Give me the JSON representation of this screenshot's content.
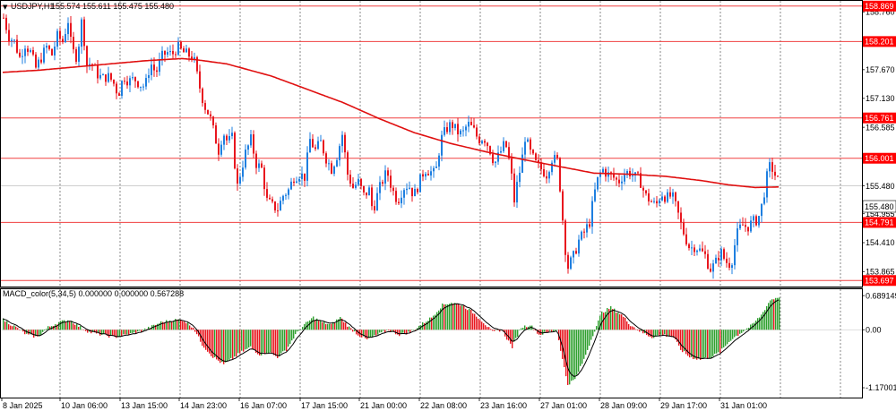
{
  "header": {
    "menu_glyph": "▼",
    "symbol": "USDJPY,H1",
    "ohlc": "155.574 155.611 155.475 155.480"
  },
  "subwindow": {
    "label": "MACD_color(5,34,5) 0.000000 0.000000 0.567288"
  },
  "colors": {
    "bull": "#1e7fe0",
    "bear": "#e8161e",
    "ma": "#e01010",
    "level_line": "#f04040",
    "level_label_bg": "#ff0000",
    "grid": "#555555",
    "macd_pos": "#2ea02e",
    "macd_neg": "#e8161e",
    "signal": "#000000"
  },
  "chart_data": [
    {
      "type": "candlestick",
      "title": "USDJPY,H1",
      "ylim": [
        153.6,
        158.95
      ],
      "y_ticks": [
        "158.760",
        "157.670",
        "157.130",
        "156.585",
        "155.480",
        "154.955",
        "154.410",
        "153.865"
      ],
      "x_labels": [
        "8 Jan 2025",
        "10 Jan 06:00",
        "13 Jan 15:00",
        "14 Jan 23:00",
        "16 Jan 07:00",
        "17 Jan 15:00",
        "21 Jan 00:00",
        "22 Jan 08:00",
        "23 Jan 16:00",
        "27 Jan 01:00",
        "28 Jan 09:00",
        "29 Jan 17:00",
        "31 Jan 01:00"
      ],
      "price_levels": [
        158.869,
        158.201,
        156.761,
        156.001,
        154.791,
        153.697
      ],
      "current_price": 155.48,
      "price_path": [
        [
          0,
          158.65
        ],
        [
          6,
          158.3
        ],
        [
          12,
          158.2
        ],
        [
          18,
          157.9
        ],
        [
          24,
          158.15
        ],
        [
          30,
          158.0
        ],
        [
          36,
          157.7
        ],
        [
          42,
          157.9
        ],
        [
          48,
          158.1
        ],
        [
          54,
          157.95
        ],
        [
          60,
          158.3
        ],
        [
          66,
          158.2
        ],
        [
          72,
          158.6
        ],
        [
          76,
          158.05
        ],
        [
          82,
          157.9
        ],
        [
          88,
          158.7
        ],
        [
          92,
          157.75
        ],
        [
          98,
          157.8
        ],
        [
          104,
          157.6
        ],
        [
          110,
          157.5
        ],
        [
          116,
          157.55
        ],
        [
          122,
          157.45
        ],
        [
          128,
          157.2
        ],
        [
          134,
          157.55
        ],
        [
          140,
          157.45
        ],
        [
          146,
          157.5
        ],
        [
          152,
          157.4
        ],
        [
          158,
          157.35
        ],
        [
          164,
          157.8
        ],
        [
          170,
          157.6
        ],
        [
          176,
          157.9
        ],
        [
          182,
          158.0
        ],
        [
          188,
          157.95
        ],
        [
          194,
          158.1
        ],
        [
          200,
          158.0
        ],
        [
          206,
          157.95
        ],
        [
          212,
          157.9
        ],
        [
          218,
          157.4
        ],
        [
          224,
          157.0
        ],
        [
          230,
          156.8
        ],
        [
          236,
          156.4
        ],
        [
          240,
          156.15
        ],
        [
          245,
          156.5
        ],
        [
          250,
          156.3
        ],
        [
          256,
          156.4
        ],
        [
          260,
          155.4
        ],
        [
          264,
          155.7
        ],
        [
          270,
          156.1
        ],
        [
          276,
          156.35
        ],
        [
          282,
          155.9
        ],
        [
          288,
          155.8
        ],
        [
          294,
          155.2
        ],
        [
          300,
          155.1
        ],
        [
          306,
          155.05
        ],
        [
          312,
          155.3
        ],
        [
          318,
          155.4
        ],
        [
          324,
          155.65
        ],
        [
          330,
          155.7
        ],
        [
          336,
          155.65
        ],
        [
          342,
          156.35
        ],
        [
          348,
          156.15
        ],
        [
          354,
          156.3
        ],
        [
          360,
          156.0
        ],
        [
          366,
          155.8
        ],
        [
          372,
          156.05
        ],
        [
          378,
          156.45
        ],
        [
          384,
          155.7
        ],
        [
          390,
          155.45
        ],
        [
          396,
          155.55
        ],
        [
          402,
          155.3
        ],
        [
          408,
          155.4
        ],
        [
          412,
          155.0
        ],
        [
          416,
          155.25
        ],
        [
          422,
          155.55
        ],
        [
          428,
          155.75
        ],
        [
          434,
          155.4
        ],
        [
          440,
          155.2
        ],
        [
          446,
          155.45
        ],
        [
          452,
          155.5
        ],
        [
          458,
          155.3
        ],
        [
          464,
          155.55
        ],
        [
          470,
          155.8
        ],
        [
          476,
          155.75
        ],
        [
          482,
          155.7
        ],
        [
          488,
          156.35
        ],
        [
          494,
          156.55
        ],
        [
          500,
          156.65
        ],
        [
          506,
          156.5
        ],
        [
          512,
          156.45
        ],
        [
          518,
          156.65
        ],
        [
          524,
          156.55
        ],
        [
          530,
          156.35
        ],
        [
          536,
          156.4
        ],
        [
          542,
          156.2
        ],
        [
          548,
          155.9
        ],
        [
          554,
          156.1
        ],
        [
          560,
          156.3
        ],
        [
          566,
          155.8
        ],
        [
          570,
          155.2
        ],
        [
          574,
          155.6
        ],
        [
          578,
          155.9
        ],
        [
          582,
          156.4
        ],
        [
          588,
          156.1
        ],
        [
          594,
          155.9
        ],
        [
          600,
          155.8
        ],
        [
          606,
          155.7
        ],
        [
          612,
          156.0
        ],
        [
          618,
          155.95
        ],
        [
          622,
          155.3
        ],
        [
          626,
          154.4
        ],
        [
          630,
          153.95
        ],
        [
          636,
          154.15
        ],
        [
          642,
          154.45
        ],
        [
          648,
          154.6
        ],
        [
          654,
          154.8
        ],
        [
          658,
          155.2
        ],
        [
          662,
          155.55
        ],
        [
          668,
          155.8
        ],
        [
          674,
          155.7
        ],
        [
          680,
          155.65
        ],
        [
          686,
          155.55
        ],
        [
          692,
          155.7
        ],
        [
          698,
          155.75
        ],
        [
          704,
          155.65
        ],
        [
          710,
          155.6
        ],
        [
          716,
          155.3
        ],
        [
          722,
          155.2
        ],
        [
          728,
          155.1
        ],
        [
          734,
          155.35
        ],
        [
          740,
          155.25
        ],
        [
          746,
          155.3
        ],
        [
          752,
          155.0
        ],
        [
          756,
          154.75
        ],
        [
          760,
          154.55
        ],
        [
          766,
          154.3
        ],
        [
          772,
          154.35
        ],
        [
          778,
          154.25
        ],
        [
          784,
          154.15
        ],
        [
          788,
          153.9
        ],
        [
          794,
          154.0
        ],
        [
          800,
          154.25
        ],
        [
          806,
          154.05
        ],
        [
          812,
          154.0
        ],
        [
          818,
          154.55
        ],
        [
          824,
          154.75
        ],
        [
          830,
          154.7
        ],
        [
          836,
          154.8
        ],
        [
          842,
          154.85
        ],
        [
          846,
          155.1
        ],
        [
          850,
          155.45
        ],
        [
          854,
          155.85
        ],
        [
          858,
          155.8
        ],
        [
          862,
          155.65
        ],
        [
          866,
          155.5
        ]
      ],
      "moving_average": [
        [
          0,
          157.62
        ],
        [
          40,
          157.66
        ],
        [
          80,
          157.72
        ],
        [
          120,
          157.78
        ],
        [
          160,
          157.84
        ],
        [
          200,
          157.88
        ],
        [
          215,
          157.86
        ],
        [
          250,
          157.78
        ],
        [
          300,
          157.55
        ],
        [
          340,
          157.3
        ],
        [
          380,
          157.05
        ],
        [
          420,
          156.75
        ],
        [
          460,
          156.48
        ],
        [
          500,
          156.28
        ],
        [
          540,
          156.12
        ],
        [
          580,
          155.98
        ],
        [
          620,
          155.85
        ],
        [
          660,
          155.72
        ],
        [
          700,
          155.7
        ],
        [
          740,
          155.66
        ],
        [
          780,
          155.58
        ],
        [
          810,
          155.5
        ],
        [
          840,
          155.45
        ],
        [
          866,
          155.46
        ]
      ]
    },
    {
      "type": "histogram",
      "title": "MACD_color(5,34,5)",
      "ylim": [
        -1.35,
        0.8
      ],
      "y_ticks": [
        "0.689149",
        "0.00",
        "-1.170011"
      ],
      "macd_path": [
        [
          0,
          0.2
        ],
        [
          14,
          0.05
        ],
        [
          26,
          -0.1
        ],
        [
          38,
          -0.15
        ],
        [
          50,
          0.05
        ],
        [
          62,
          0.15
        ],
        [
          74,
          0.2
        ],
        [
          86,
          0.05
        ],
        [
          96,
          -0.05
        ],
        [
          110,
          -0.1
        ],
        [
          124,
          -0.15
        ],
        [
          138,
          -0.1
        ],
        [
          150,
          -0.05
        ],
        [
          164,
          0.05
        ],
        [
          176,
          0.15
        ],
        [
          190,
          0.2
        ],
        [
          200,
          0.2
        ],
        [
          212,
          0.05
        ],
        [
          222,
          -0.3
        ],
        [
          234,
          -0.55
        ],
        [
          246,
          -0.7
        ],
        [
          258,
          -0.55
        ],
        [
          266,
          -0.45
        ],
        [
          276,
          -0.35
        ],
        [
          286,
          -0.5
        ],
        [
          296,
          -0.45
        ],
        [
          306,
          -0.55
        ],
        [
          316,
          -0.4
        ],
        [
          326,
          -0.1
        ],
        [
          336,
          0.1
        ],
        [
          346,
          0.25
        ],
        [
          356,
          0.15
        ],
        [
          366,
          0.1
        ],
        [
          376,
          0.25
        ],
        [
          386,
          0.05
        ],
        [
          396,
          -0.1
        ],
        [
          406,
          -0.2
        ],
        [
          418,
          -0.1
        ],
        [
          430,
          0.0
        ],
        [
          442,
          -0.1
        ],
        [
          454,
          -0.05
        ],
        [
          466,
          0.1
        ],
        [
          478,
          0.25
        ],
        [
          490,
          0.5
        ],
        [
          500,
          0.55
        ],
        [
          512,
          0.5
        ],
        [
          524,
          0.35
        ],
        [
          536,
          0.15
        ],
        [
          546,
          -0.05
        ],
        [
          556,
          0.0
        ],
        [
          568,
          -0.35
        ],
        [
          578,
          0.05
        ],
        [
          588,
          0.1
        ],
        [
          598,
          -0.1
        ],
        [
          608,
          -0.05
        ],
        [
          618,
          0.0
        ],
        [
          624,
          -0.6
        ],
        [
          630,
          -1.1
        ],
        [
          638,
          -1.0
        ],
        [
          648,
          -0.6
        ],
        [
          658,
          -0.1
        ],
        [
          668,
          0.35
        ],
        [
          678,
          0.45
        ],
        [
          690,
          0.3
        ],
        [
          700,
          0.1
        ],
        [
          712,
          -0.05
        ],
        [
          724,
          -0.15
        ],
        [
          736,
          -0.1
        ],
        [
          748,
          -0.15
        ],
        [
          756,
          -0.4
        ],
        [
          766,
          -0.55
        ],
        [
          778,
          -0.6
        ],
        [
          790,
          -0.55
        ],
        [
          800,
          -0.45
        ],
        [
          812,
          -0.2
        ],
        [
          824,
          -0.05
        ],
        [
          836,
          0.1
        ],
        [
          846,
          0.3
        ],
        [
          856,
          0.6
        ],
        [
          866,
          0.67
        ]
      ]
    }
  ]
}
